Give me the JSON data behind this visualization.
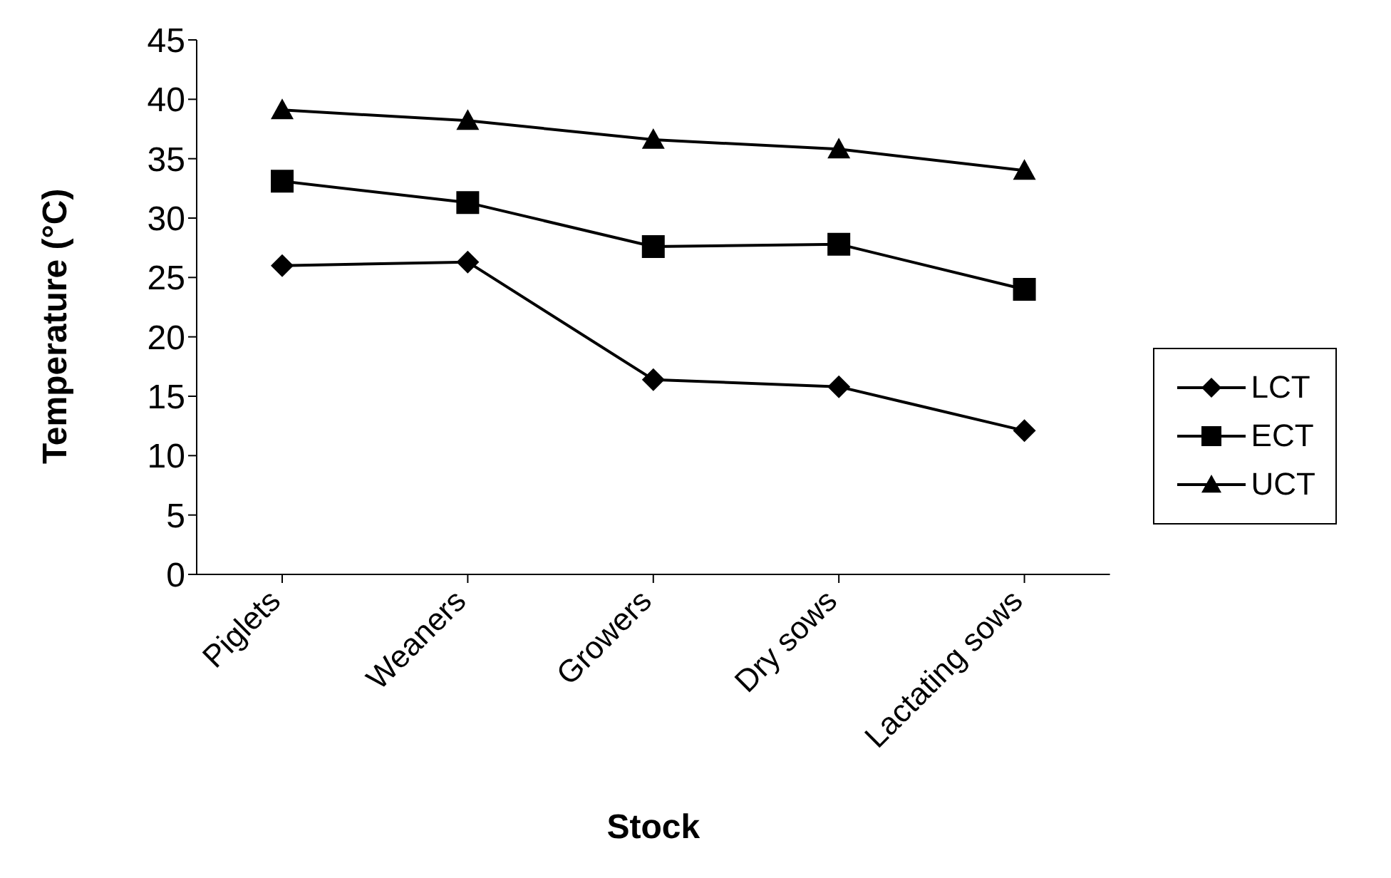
{
  "chart_data": {
    "type": "line",
    "xlabel": "Stock",
    "ylabel": "Temperature (°C)",
    "categories": [
      "Piglets",
      "Weaners",
      "Growers",
      "Dry sows",
      "Lactating sows"
    ],
    "series": [
      {
        "name": "LCT",
        "color": "#000000",
        "marker": "diamond",
        "values": [
          26.0,
          26.3,
          16.4,
          15.8,
          12.1
        ]
      },
      {
        "name": "ECT",
        "color": "#000000",
        "marker": "square",
        "values": [
          33.1,
          31.3,
          27.6,
          27.8,
          24.0
        ]
      },
      {
        "name": "UCT",
        "color": "#000000",
        "marker": "triangle",
        "values": [
          39.1,
          38.2,
          36.6,
          35.8,
          34.0
        ]
      }
    ],
    "ylim": [
      0,
      45
    ],
    "yticks": [
      0,
      5,
      10,
      15,
      20,
      25,
      30,
      35,
      40,
      45
    ],
    "grid": false,
    "legend": "right",
    "line_style": "solid"
  }
}
